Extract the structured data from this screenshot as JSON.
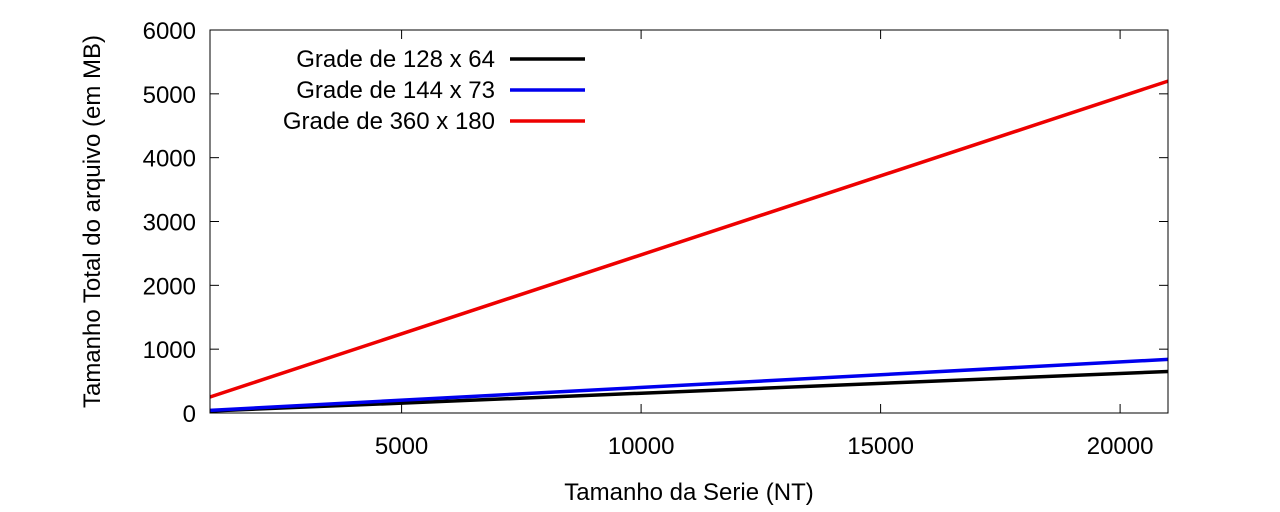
{
  "chart_data": {
    "type": "line",
    "xlabel": "Tamanho da Serie (NT)",
    "ylabel": "Tamanho Total do arquivo (em MB)",
    "xlim": [
      1000,
      21000
    ],
    "ylim": [
      0,
      6000
    ],
    "xticks": [
      5000,
      10000,
      15000,
      20000
    ],
    "xtick_labels": [
      "5000",
      "10000",
      "15000",
      "20000"
    ],
    "yticks": [
      0,
      1000,
      2000,
      3000,
      4000,
      5000,
      6000
    ],
    "ytick_labels": [
      "0",
      "1000",
      "2000",
      "3000",
      "4000",
      "5000",
      "6000"
    ],
    "grid": false,
    "legend_position": "top-left",
    "series": [
      {
        "name": "Grade de 128 x 64",
        "color": "#000000",
        "x": [
          1000,
          21000
        ],
        "y": [
          32,
          650
        ]
      },
      {
        "name": "Grade de 144 x 73",
        "color": "#0000ee",
        "x": [
          1000,
          21000
        ],
        "y": [
          40,
          840
        ]
      },
      {
        "name": "Grade de 360 x 180",
        "color": "#ee0000",
        "x": [
          1000,
          21000
        ],
        "y": [
          250,
          5200
        ]
      }
    ]
  }
}
